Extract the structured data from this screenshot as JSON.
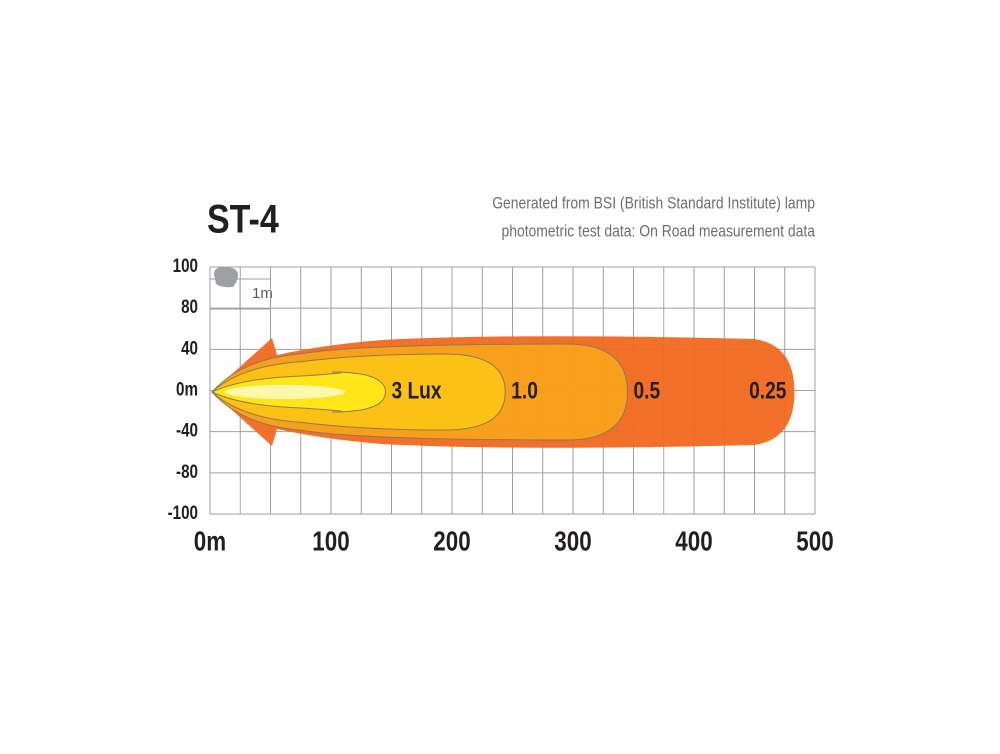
{
  "chart_data": {
    "type": "beam-pattern",
    "title": "ST-4",
    "subtitle": [
      "Generated from BSI (British Standard Institute) lamp",
      "photometric test data: On Road measurement data"
    ],
    "scale_label": "1m",
    "xlim": [
      0,
      500
    ],
    "xticks": [
      {
        "value": 0,
        "label": "0m"
      },
      100,
      200,
      300,
      400,
      500
    ],
    "ylabels": [
      "100",
      "80",
      "40",
      "0m",
      "-40",
      "-80",
      "-100"
    ],
    "grid": true,
    "contours": [
      {
        "label": "0.25",
        "reach": 483,
        "color": "#f26a22"
      },
      {
        "label": "0.5",
        "reach": 345,
        "color": "#f9a11b"
      },
      {
        "label": "1.0",
        "reach": 244,
        "color": "#fcc415"
      },
      {
        "label": "3 Lux",
        "reach": 145,
        "color": "#ffe81a"
      }
    ]
  }
}
